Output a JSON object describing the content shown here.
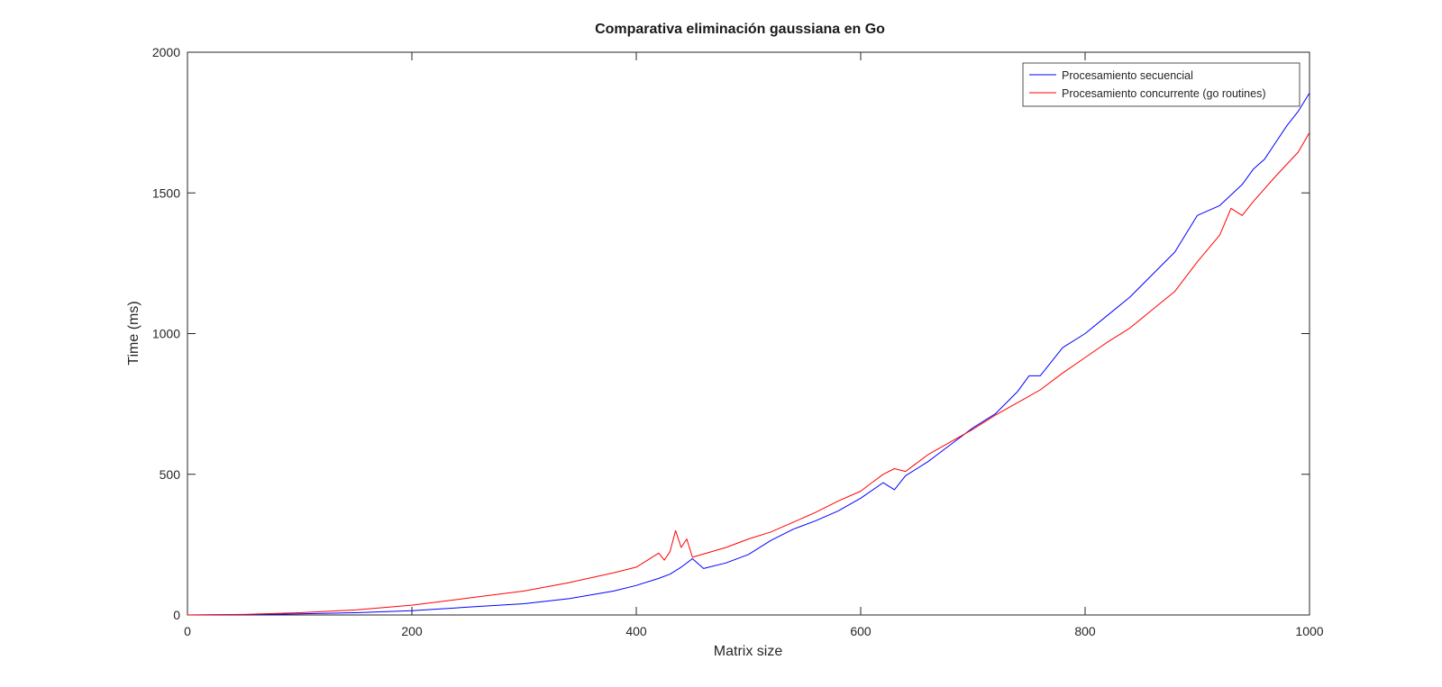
{
  "chart_data": {
    "type": "line",
    "title": "Comparativa eliminación gaussiana en Go",
    "xlabel": "Matrix size",
    "ylabel": "Time (ms)",
    "xlim": [
      0,
      1000
    ],
    "ylim": [
      0,
      2000
    ],
    "x_ticks": [
      "0",
      "200",
      "400",
      "600",
      "800",
      "1000"
    ],
    "y_ticks": [
      "0",
      "500",
      "1000",
      "1500",
      "2000"
    ],
    "grid": false,
    "legend_position": "top-right",
    "series": [
      {
        "name": "Procesamiento secuencial",
        "color": "#0000ff",
        "x": [
          0,
          50,
          100,
          150,
          200,
          250,
          300,
          340,
          380,
          400,
          420,
          430,
          440,
          450,
          460,
          480,
          500,
          520,
          540,
          560,
          580,
          600,
          620,
          630,
          640,
          660,
          680,
          700,
          720,
          740,
          750,
          760,
          780,
          800,
          820,
          840,
          860,
          880,
          900,
          920,
          940,
          950,
          960,
          970,
          980,
          990,
          1000
        ],
        "y": [
          0,
          1,
          4,
          8,
          15,
          28,
          40,
          58,
          85,
          105,
          130,
          145,
          170,
          200,
          165,
          185,
          215,
          265,
          305,
          335,
          370,
          415,
          470,
          445,
          495,
          545,
          605,
          665,
          715,
          795,
          850,
          850,
          950,
          1000,
          1065,
          1130,
          1210,
          1290,
          1420,
          1455,
          1530,
          1585,
          1620,
          1680,
          1740,
          1790,
          1855
        ]
      },
      {
        "name": "Procesamiento concurrente (go routines)",
        "color": "#ff0000",
        "x": [
          0,
          50,
          100,
          150,
          200,
          250,
          300,
          340,
          380,
          400,
          420,
          425,
          430,
          435,
          440,
          445,
          450,
          480,
          500,
          520,
          540,
          560,
          580,
          600,
          610,
          620,
          630,
          640,
          660,
          680,
          700,
          720,
          740,
          760,
          780,
          800,
          820,
          840,
          860,
          880,
          900,
          920,
          930,
          940,
          950,
          970,
          990,
          1000
        ],
        "y": [
          0,
          2,
          8,
          18,
          35,
          60,
          85,
          115,
          150,
          170,
          220,
          195,
          225,
          300,
          240,
          270,
          205,
          240,
          270,
          295,
          330,
          365,
          405,
          440,
          470,
          500,
          520,
          510,
          570,
          615,
          660,
          710,
          755,
          800,
          860,
          915,
          970,
          1020,
          1085,
          1150,
          1255,
          1350,
          1445,
          1420,
          1470,
          1560,
          1645,
          1715
        ]
      }
    ]
  }
}
